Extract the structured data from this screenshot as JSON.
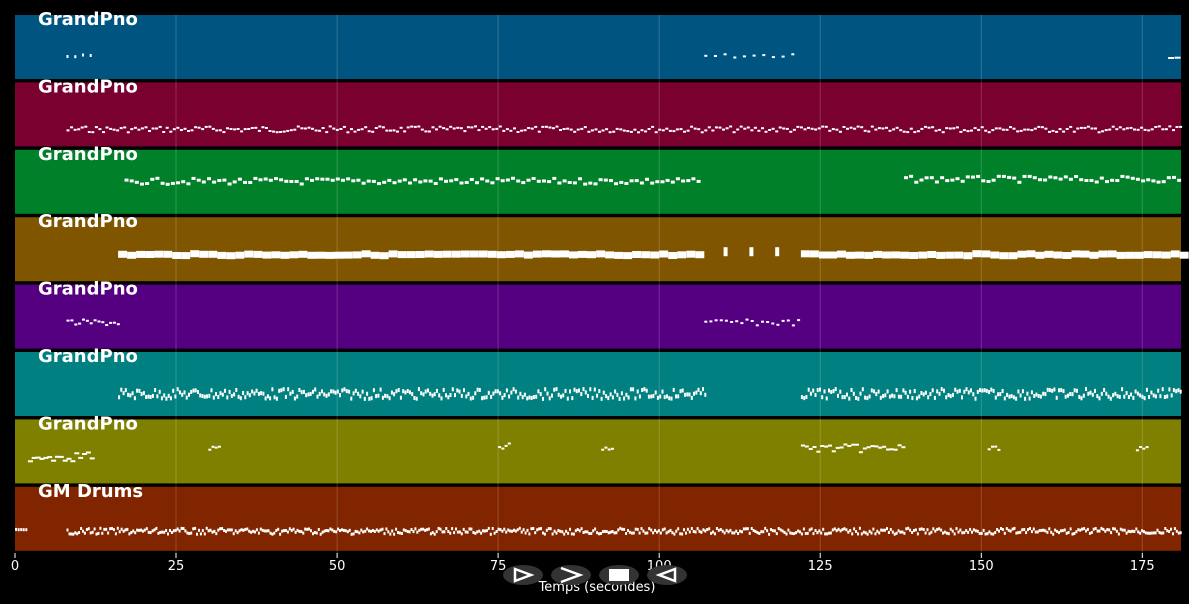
{
  "x_axis": {
    "title": "Temps (secondes)",
    "min": 0,
    "max": 181,
    "ticks": [
      0,
      25,
      50,
      75,
      100,
      125,
      150,
      175
    ],
    "tick_labels": [
      "0",
      "25",
      "50",
      "75",
      "100",
      "125",
      "150",
      "175"
    ]
  },
  "tracks": [
    {
      "name": "GrandPno",
      "color": "#005580",
      "pattern": "sparse_top"
    },
    {
      "name": "GrandPno",
      "color": "#7a0030",
      "pattern": "melody"
    },
    {
      "name": "GrandPno",
      "color": "#008028",
      "pattern": "chords"
    },
    {
      "name": "GrandPno",
      "color": "#805500",
      "pattern": "bass"
    },
    {
      "name": "GrandPno",
      "color": "#550080",
      "pattern": "sparse_mid"
    },
    {
      "name": "GrandPno",
      "color": "#008080",
      "pattern": "dense"
    },
    {
      "name": "GrandPno",
      "color": "#808000",
      "pattern": "phrases"
    },
    {
      "name": "GM Drums",
      "color": "#802500",
      "pattern": "drums"
    }
  ],
  "controls": [
    {
      "name": "play-button",
      "icon": "play-outline-icon"
    },
    {
      "name": "next-button",
      "icon": "chevron-right-icon"
    },
    {
      "name": "stop-button",
      "icon": "stop-icon"
    },
    {
      "name": "rewind-button",
      "icon": "rewind-icon"
    }
  ]
}
